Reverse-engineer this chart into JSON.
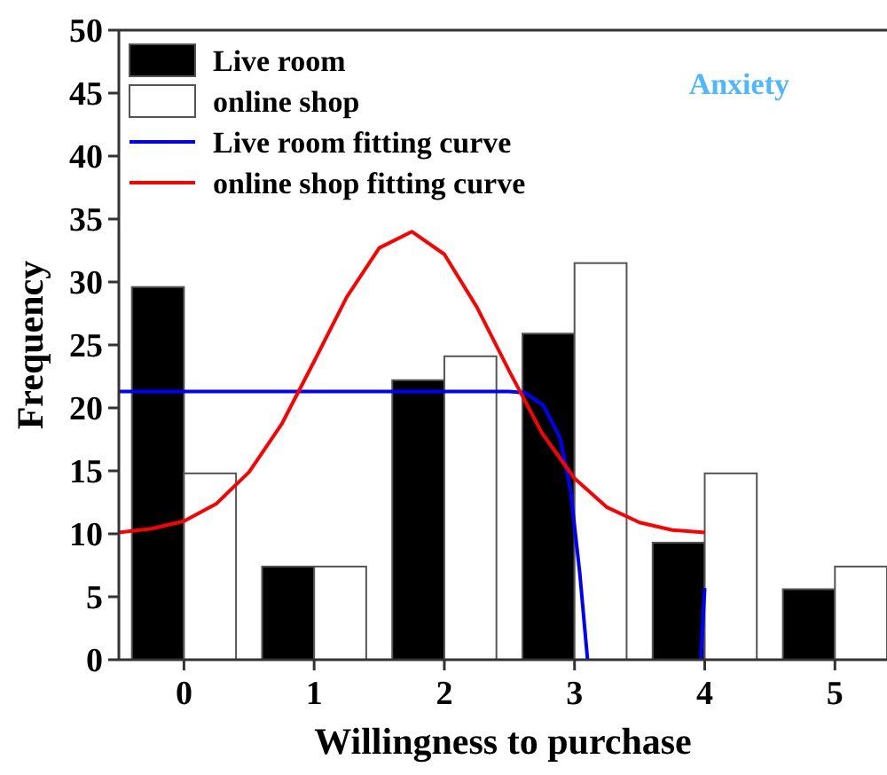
{
  "chart_data": {
    "type": "bar",
    "xlabel": "Willingness to purchase",
    "ylabel": "Frequency",
    "annotations": [
      "Anxiety"
    ],
    "xlim": [
      -0.5,
      5.4
    ],
    "xticks": [
      0,
      1,
      2,
      3,
      4,
      5
    ],
    "ylim": [
      0,
      50
    ],
    "yticks": [
      0,
      5,
      10,
      15,
      20,
      25,
      30,
      35,
      40,
      45,
      50
    ],
    "grid": false,
    "legend": "top left",
    "series": [
      {
        "name": "Live room",
        "color": "#000000",
        "x": [
          0,
          1,
          2,
          3,
          4,
          5
        ],
        "values": [
          29.6,
          7.4,
          22.2,
          25.9,
          9.3,
          5.6
        ]
      },
      {
        "name": "online shop",
        "color": "#ffffff",
        "x": [
          0,
          1,
          2,
          3,
          4,
          5
        ],
        "values": [
          14.8,
          7.4,
          24.1,
          31.5,
          14.8,
          7.4
        ]
      },
      {
        "name": "Live room fitting curve",
        "type": "line",
        "color": "#0000ff",
        "marker": "none",
        "x": [
          -0.5,
          2.5,
          2.62,
          2.76,
          2.89,
          2.97,
          3.04,
          3.1,
          3.5,
          3.97,
          4.0
        ],
        "values": [
          21.3,
          21.3,
          21.2,
          20.2,
          17.6,
          13.4,
          6.9,
          0,
          null,
          0,
          5.7
        ]
      },
      {
        "name": "online shop fitting curve",
        "type": "line",
        "color": "#ff0000",
        "marker": "none",
        "x": [
          -0.5,
          -0.25,
          0,
          0.25,
          0.5,
          0.75,
          1,
          1.25,
          1.5,
          1.75,
          2,
          2.25,
          2.5,
          2.75,
          3,
          3.25,
          3.5,
          3.75,
          4
        ],
        "values": [
          10.1,
          10.4,
          11.0,
          12.4,
          14.9,
          18.7,
          23.7,
          28.8,
          32.7,
          34.0,
          32.2,
          28.0,
          22.9,
          18.0,
          14.4,
          12.1,
          10.9,
          10.3,
          10.1
        ]
      }
    ]
  }
}
